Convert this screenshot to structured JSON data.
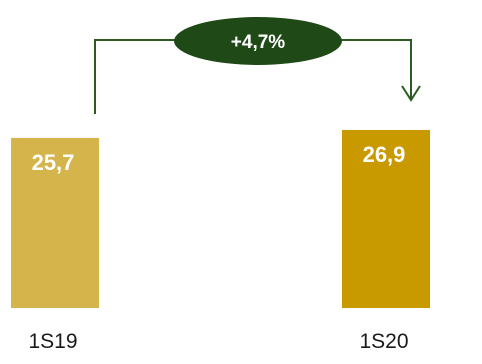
{
  "chart_data": {
    "type": "bar",
    "categories": [
      "1S19",
      "1S20"
    ],
    "values": [
      25.7,
      26.9
    ],
    "value_labels": [
      "25,7",
      "26,9"
    ],
    "ylim": [
      0,
      27.5
    ],
    "grid": false,
    "change_label": "+4,7%",
    "colors": {
      "bar_1S19": "#d6b44c",
      "bar_1S20": "#c89a00",
      "connector": "#2d5a1e",
      "badge": "#1f4a17"
    }
  }
}
